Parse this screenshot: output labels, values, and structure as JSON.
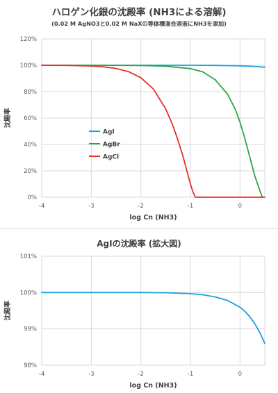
{
  "chart_data": [
    {
      "type": "line",
      "title": "ハロゲン化銀の沈殿率 (NH3による溶解)",
      "subtitle": "(0.02 M AgNO3と0.02 M NaXの等体積混合溶液にNH3を添加)",
      "xlabel": "log Cn (NH3)",
      "ylabel": "沈殿率",
      "xlim": [
        -4,
        0.5
      ],
      "ylim": [
        0,
        120
      ],
      "xticks": [
        "-4",
        "-3",
        "-2",
        "-1",
        "0"
      ],
      "yticks": [
        "0%",
        "20%",
        "40%",
        "60%",
        "80%",
        "100%",
        "120%"
      ],
      "grid": true,
      "legend": "left-middle",
      "series": [
        {
          "name": "AgI",
          "color": "#1ba1d8",
          "x": [
            -4,
            -3,
            -2,
            -1,
            -0.5,
            0,
            0.25,
            0.5
          ],
          "y": [
            100,
            100,
            100,
            100,
            99.9,
            99.6,
            99.2,
            98.6
          ]
        },
        {
          "name": "AgBr",
          "color": "#28a745",
          "x": [
            -4,
            -3,
            -2,
            -1.5,
            -1,
            -0.75,
            -0.5,
            -0.25,
            -0.1,
            0,
            0.1,
            0.2,
            0.3,
            0.4,
            0.45
          ],
          "y": [
            100,
            100,
            99.8,
            99.3,
            97.5,
            95,
            89,
            78,
            67,
            57,
            44,
            30,
            16,
            5,
            0
          ]
        },
        {
          "name": "AgCl",
          "color": "#e8302a",
          "x": [
            -4,
            -3.5,
            -3,
            -2.75,
            -2.5,
            -2.25,
            -2,
            -1.75,
            -1.5,
            -1.35,
            -1.25,
            -1.15,
            -1.05,
            -1.0,
            -0.95,
            -0.9,
            0.5
          ],
          "y": [
            100,
            99.9,
            99.4,
            98.8,
            97.6,
            95.2,
            90.6,
            82.1,
            67.1,
            54,
            43,
            31,
            17,
            10,
            4,
            0,
            0
          ]
        }
      ]
    },
    {
      "type": "line",
      "title": "AgIの沈殿率 (拡大図)",
      "xlabel": "log Cn (NH3)",
      "ylabel": "沈殿率",
      "xlim": [
        -4,
        0.5
      ],
      "ylim": [
        98,
        101
      ],
      "xticks": [
        "-4",
        "-3",
        "-2",
        "-1",
        "0"
      ],
      "yticks": [
        "98%",
        "99%",
        "100%",
        "101%"
      ],
      "grid": true,
      "series": [
        {
          "name": "AgI",
          "color": "#1ba1d8",
          "x": [
            -4,
            -3,
            -2,
            -1.5,
            -1,
            -0.75,
            -0.5,
            -0.25,
            0,
            0.1,
            0.2,
            0.3,
            0.4,
            0.5
          ],
          "y": [
            100,
            100,
            100,
            99.995,
            99.97,
            99.94,
            99.88,
            99.78,
            99.6,
            99.48,
            99.33,
            99.14,
            98.9,
            98.6
          ]
        }
      ]
    }
  ]
}
